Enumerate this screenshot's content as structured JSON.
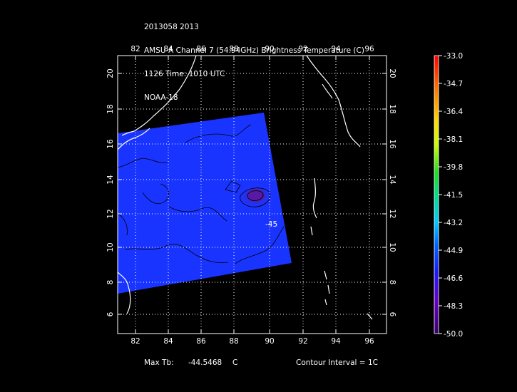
{
  "header": {
    "line1": "2013058 2013",
    "line2": "AMSU-A Channel 7 (54.94GHz) Brightness Temperature (C)",
    "line3": "1126 Time: 1010 UTC",
    "line4": "NOAA-18"
  },
  "map": {
    "lon_ticks": [
      "82",
      "84",
      "86",
      "88",
      "90",
      "92",
      "94",
      "96"
    ],
    "lat_ticks": [
      "20",
      "18",
      "16",
      "14",
      "12",
      "10",
      "8",
      "6"
    ],
    "contour_label": "-45",
    "colors": {
      "background": "#000000",
      "frame": "#ffffff",
      "swath": "#1a34ff",
      "coastline": "#ffffff"
    }
  },
  "colorbar": {
    "labels": [
      "-33.0",
      "-34.7",
      "-36.4",
      "-38.1",
      "-39.8",
      "-41.5",
      "-43.2",
      "-44.9",
      "-46.6",
      "-48.3",
      "-50.0"
    ],
    "colors": [
      "#ff0000",
      "#ff6600",
      "#ffcc00",
      "#ccff00",
      "#33dd33",
      "#00cc88",
      "#00ccff",
      "#0088ff",
      "#0033ff",
      "#5500cc",
      "#3a0070"
    ]
  },
  "footer": {
    "max_label": "Max Tb:",
    "max_value": "-44.5468",
    "max_unit": "C",
    "contour_interval": "Contour Interval = 1C"
  }
}
